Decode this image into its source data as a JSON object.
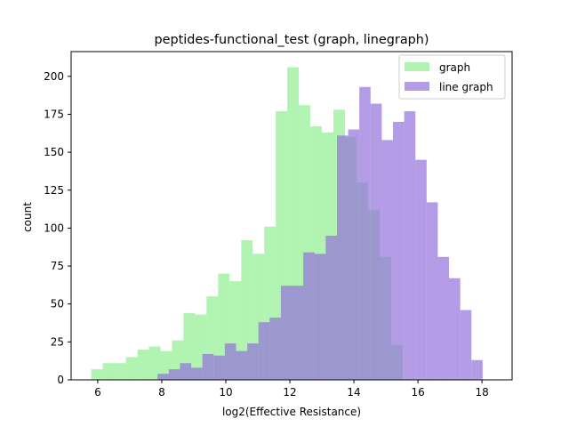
{
  "chart_data": {
    "type": "bar",
    "title": "peptides-functional_test (graph, linegraph)",
    "xlabel": "log2(Effective Resistance)",
    "ylabel": "count",
    "xlim": [
      5.17,
      18.94
    ],
    "ylim": [
      0,
      216.3
    ],
    "xticks": [
      6,
      8,
      10,
      12,
      14,
      16,
      18
    ],
    "yticks": [
      0,
      25,
      50,
      75,
      100,
      125,
      150,
      175,
      200
    ],
    "legend_position": "top-right",
    "series": [
      {
        "name": "graph",
        "color": "#90ee90",
        "opacity": 0.7,
        "bin_start": 5.8,
        "bin_width": 0.36,
        "values": [
          7,
          11,
          11,
          15,
          20,
          22,
          19,
          26,
          44,
          43,
          55,
          70,
          65,
          92,
          83,
          101,
          177,
          206,
          181,
          167,
          163,
          178,
          160,
          130,
          112,
          81,
          23
        ]
      },
      {
        "name": "line graph",
        "color": "#9370db",
        "opacity": 0.7,
        "bin_start": 7.87,
        "bin_width": 0.35,
        "values": [
          4,
          7,
          11,
          8,
          17,
          16,
          24,
          19,
          24,
          38,
          41,
          62,
          62,
          84,
          83,
          95,
          161,
          165,
          193,
          182,
          158,
          170,
          177,
          145,
          117,
          81,
          67,
          46,
          13
        ]
      }
    ]
  }
}
